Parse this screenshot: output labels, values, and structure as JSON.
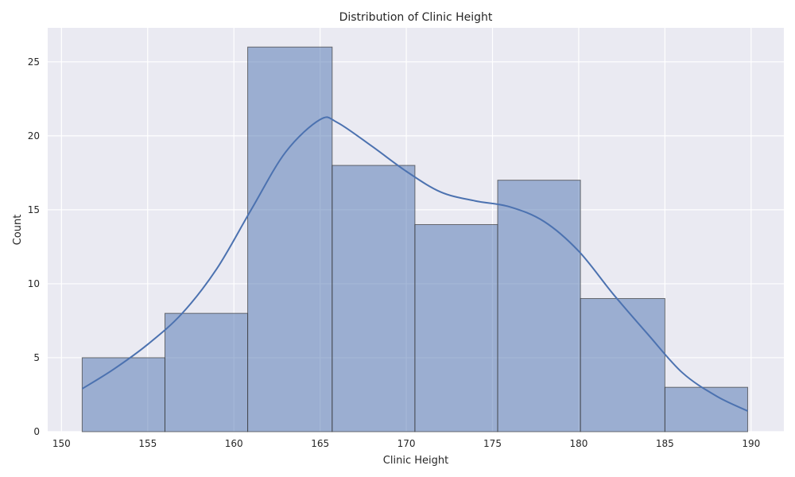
{
  "chart_data": {
    "type": "bar",
    "subtype": "histogram",
    "title": "Distribution of Clinic Height",
    "xlabel": "Clinic Height",
    "ylabel": "Count",
    "xlim": [
      149.2,
      191.9
    ],
    "ylim": [
      0,
      27.3
    ],
    "x_ticks": [
      150,
      155,
      160,
      165,
      170,
      175,
      180,
      185,
      190
    ],
    "y_ticks": [
      0,
      5,
      10,
      15,
      20,
      25
    ],
    "bins": [
      {
        "start": 151.2,
        "end": 156.0,
        "count": 5
      },
      {
        "start": 156.0,
        "end": 160.8,
        "count": 8
      },
      {
        "start": 160.8,
        "end": 165.7,
        "count": 26
      },
      {
        "start": 165.7,
        "end": 170.5,
        "count": 18
      },
      {
        "start": 170.5,
        "end": 175.3,
        "count": 14
      },
      {
        "start": 175.3,
        "end": 180.1,
        "count": 17
      },
      {
        "start": 180.1,
        "end": 185.0,
        "count": 9
      },
      {
        "start": 185.0,
        "end": 189.8,
        "count": 3
      }
    ],
    "kde": [
      [
        151.2,
        2.9
      ],
      [
        153.0,
        4.2
      ],
      [
        155.0,
        5.9
      ],
      [
        157.0,
        8.0
      ],
      [
        159.0,
        11.0
      ],
      [
        161.0,
        15.0
      ],
      [
        163.0,
        18.9
      ],
      [
        165.0,
        21.1
      ],
      [
        166.0,
        20.9
      ],
      [
        168.0,
        19.3
      ],
      [
        170.0,
        17.6
      ],
      [
        172.0,
        16.2
      ],
      [
        174.0,
        15.6
      ],
      [
        176.0,
        15.2
      ],
      [
        178.0,
        14.2
      ],
      [
        180.0,
        12.2
      ],
      [
        182.0,
        9.3
      ],
      [
        184.0,
        6.6
      ],
      [
        186.0,
        4.0
      ],
      [
        188.0,
        2.4
      ],
      [
        189.8,
        1.4
      ]
    ],
    "grid": true,
    "colors": {
      "bar_fill": "#4c72b0",
      "bar_edge": "#3a3a3a",
      "kde_line": "#4c72b0",
      "plot_background": "#eaeaf2",
      "grid": "#ffffff"
    }
  }
}
